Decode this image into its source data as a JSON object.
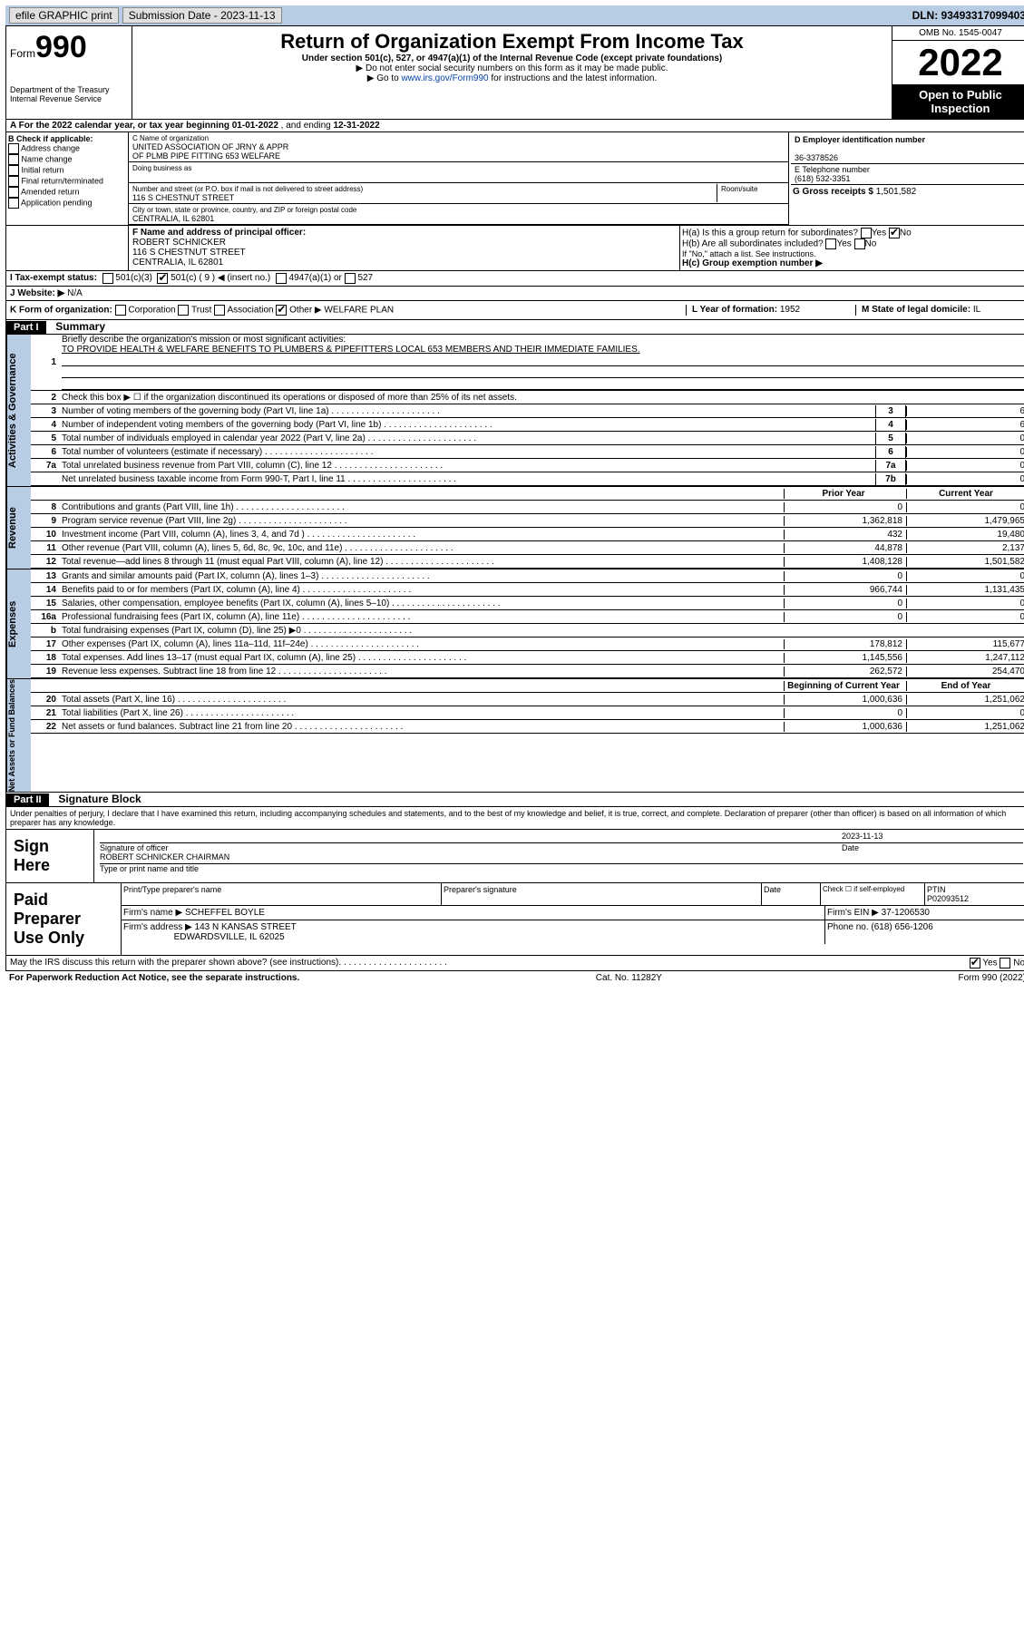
{
  "topbar": {
    "efile": "efile GRAPHIC print",
    "subdate_label": "Submission Date - 2023-11-13",
    "dln": "DLN: 93493317099403"
  },
  "header": {
    "form_word": "Form",
    "form_num": "990",
    "dept": "Department of the Treasury\nInternal Revenue Service",
    "title": "Return of Organization Exempt From Income Tax",
    "under": "Under section 501(c), 527, or 4947(a)(1) of the Internal Revenue Code (except private foundations)",
    "warn": "▶ Do not enter social security numbers on this form as it may be made public.",
    "goto": "▶ Go to ",
    "goto_link": "www.irs.gov/Form990",
    "goto_after": " for instructions and the latest information.",
    "omb": "OMB No. 1545-0047",
    "year": "2022",
    "otp": "Open to Public Inspection"
  },
  "period": {
    "a": "A For the 2022 calendar year, or tax year beginning ",
    "beg": "01-01-2022",
    "mid": " , and ending ",
    "end": "12-31-2022"
  },
  "B": {
    "hdr": "B Check if applicable:",
    "items": [
      "Address change",
      "Name change",
      "Initial return",
      "Final return/terminated",
      "Amended return",
      "Application pending"
    ]
  },
  "C": {
    "namelbl": "C Name of organization",
    "name1": "UNITED ASSOCIATION OF JRNY & APPR",
    "name2": "OF PLMB PIPE FITTING 653 WELFARE",
    "dbalbl": "Doing business as",
    "addrlbl": "Number and street (or P.O. box if mail is not delivered to street address)",
    "room": "Room/suite",
    "addr": "116 S CHESTNUT STREET",
    "citylbl": "City or town, state or province, country, and ZIP or foreign postal code",
    "city": "CENTRALIA, IL 62801"
  },
  "D": {
    "lbl": "D Employer identification number",
    "val": "36-3378526"
  },
  "E": {
    "lbl": "E Telephone number",
    "val": "(618) 532-3351"
  },
  "G": {
    "lbl": "G Gross receipts $",
    "val": "1,501,582"
  },
  "F": {
    "lbl": "F Name and address of principal officer:",
    "name": "ROBERT SCHNICKER",
    "l2": "116 S CHESTNUT STREET",
    "l3": "CENTRALIA, IL 62801"
  },
  "H": {
    "a": "H(a) Is this a group return for subordinates?",
    "b": "H(b) Are all subordinates included?",
    "note": "If \"No,\" attach a list. See instructions.",
    "c": "H(c) Group exemption number ▶",
    "yes": "Yes",
    "no": "No"
  },
  "I": {
    "lbl": "I Tax-exempt status:",
    "o1": "501(c)(3)",
    "o2": "501(c) ( 9 ) ◀ (insert no.)",
    "o3": "4947(a)(1) or",
    "o4": "527"
  },
  "J": {
    "lbl": "J Website: ▶",
    "val": "N/A"
  },
  "K": {
    "lbl": "K Form of organization:",
    "o1": "Corporation",
    "o2": "Trust",
    "o3": "Association",
    "o4": "Other ▶",
    "o4v": "WELFARE PLAN"
  },
  "L": {
    "lbl": "L Year of formation:",
    "val": "1952"
  },
  "M": {
    "lbl": "M State of legal domicile:",
    "val": "IL"
  },
  "PartI": {
    "label": "Part I",
    "title": "Summary",
    "l1a": "Briefly describe the organization's mission or most significant activities:",
    "l1b": "TO PROVIDE HEALTH & WELFARE BENEFITS TO PLUMBERS & PIPEFITTERS LOCAL 653 MEMBERS AND THEIR IMMEDIATE FAMILIES.",
    "l2": "Check this box ▶ ☐ if the organization discontinued its operations or disposed of more than 25% of its net assets.",
    "gov_lines": [
      {
        "n": "3",
        "t": "Number of voting members of the governing body (Part VI, line 1a)",
        "b": "3",
        "v": "6"
      },
      {
        "n": "4",
        "t": "Number of independent voting members of the governing body (Part VI, line 1b)",
        "b": "4",
        "v": "6"
      },
      {
        "n": "5",
        "t": "Total number of individuals employed in calendar year 2022 (Part V, line 2a)",
        "b": "5",
        "v": "0"
      },
      {
        "n": "6",
        "t": "Total number of volunteers (estimate if necessary)",
        "b": "6",
        "v": "0"
      },
      {
        "n": "7a",
        "t": "Total unrelated business revenue from Part VIII, column (C), line 12",
        "b": "7a",
        "v": "0"
      },
      {
        "n": "",
        "t": "Net unrelated business taxable income from Form 990-T, Part I, line 11",
        "b": "7b",
        "v": "0"
      }
    ],
    "colhdr_prior": "Prior Year",
    "colhdr_curr": "Current Year",
    "rev_lines": [
      {
        "n": "8",
        "t": "Contributions and grants (Part VIII, line 1h)",
        "p": "0",
        "c": "0"
      },
      {
        "n": "9",
        "t": "Program service revenue (Part VIII, line 2g)",
        "p": "1,362,818",
        "c": "1,479,965"
      },
      {
        "n": "10",
        "t": "Investment income (Part VIII, column (A), lines 3, 4, and 7d )",
        "p": "432",
        "c": "19,480"
      },
      {
        "n": "11",
        "t": "Other revenue (Part VIII, column (A), lines 5, 6d, 8c, 9c, 10c, and 11e)",
        "p": "44,878",
        "c": "2,137"
      },
      {
        "n": "12",
        "t": "Total revenue—add lines 8 through 11 (must equal Part VIII, column (A), line 12)",
        "p": "1,408,128",
        "c": "1,501,582"
      }
    ],
    "exp_lines": [
      {
        "n": "13",
        "t": "Grants and similar amounts paid (Part IX, column (A), lines 1–3)",
        "p": "0",
        "c": "0"
      },
      {
        "n": "14",
        "t": "Benefits paid to or for members (Part IX, column (A), line 4)",
        "p": "966,744",
        "c": "1,131,435"
      },
      {
        "n": "15",
        "t": "Salaries, other compensation, employee benefits (Part IX, column (A), lines 5–10)",
        "p": "0",
        "c": "0"
      },
      {
        "n": "16a",
        "t": "Professional fundraising fees (Part IX, column (A), line 11e)",
        "p": "0",
        "c": "0"
      },
      {
        "n": "b",
        "t": "Total fundraising expenses (Part IX, column (D), line 25) ▶0",
        "p": "",
        "c": ""
      },
      {
        "n": "17",
        "t": "Other expenses (Part IX, column (A), lines 11a–11d, 11f–24e)",
        "p": "178,812",
        "c": "115,677"
      },
      {
        "n": "18",
        "t": "Total expenses. Add lines 13–17 (must equal Part IX, column (A), line 25)",
        "p": "1,145,556",
        "c": "1,247,112"
      },
      {
        "n": "19",
        "t": "Revenue less expenses. Subtract line 18 from line 12",
        "p": "262,572",
        "c": "254,470"
      }
    ],
    "na_hdr_beg": "Beginning of Current Year",
    "na_hdr_end": "End of Year",
    "na_lines": [
      {
        "n": "20",
        "t": "Total assets (Part X, line 16)",
        "p": "1,000,636",
        "c": "1,251,062"
      },
      {
        "n": "21",
        "t": "Total liabilities (Part X, line 26)",
        "p": "0",
        "c": "0"
      },
      {
        "n": "22",
        "t": "Net assets or fund balances. Subtract line 21 from line 20",
        "p": "1,000,636",
        "c": "1,251,062"
      }
    ]
  },
  "PartII": {
    "label": "Part II",
    "title": "Signature Block",
    "jurat": "Under penalties of perjury, I declare that I have examined this return, including accompanying schedules and statements, and to the best of my knowledge and belief, it is true, correct, and complete. Declaration of preparer (other than officer) is based on all information of which preparer has any knowledge.",
    "sign": "Sign Here",
    "sigoff": "Signature of officer",
    "date": "Date",
    "sigdate": "2023-11-13",
    "name": "ROBERT SCHNICKER  CHAIRMAN",
    "nametag": "Type or print name and title",
    "paid": "Paid Preparer Use Only",
    "prep_cols": [
      "Print/Type preparer's name",
      "Preparer's signature",
      "Date"
    ],
    "chk": "Check ☐ if self-employed",
    "ptin_lbl": "PTIN",
    "ptin": "P02093512",
    "firm_lbl": "Firm's name ▶",
    "firm": "SCHEFFEL BOYLE",
    "fein_lbl": "Firm's EIN ▶",
    "fein": "37-1206530",
    "faddr_lbl": "Firm's address ▶",
    "faddr1": "143 N KANSAS STREET",
    "faddr2": "EDWARDSVILLE, IL 62025",
    "fphone_lbl": "Phone no.",
    "fphone": "(618) 656-1206",
    "may": "May the IRS discuss this return with the preparer shown above? (see instructions)"
  },
  "footer": {
    "pra": "For Paperwork Reduction Act Notice, see the separate instructions.",
    "cat": "Cat. No. 11282Y",
    "form": "Form 990 (2022)"
  },
  "vtabs": {
    "gov": "Activities & Governance",
    "rev": "Revenue",
    "exp": "Expenses",
    "na": "Net Assets or Fund Balances"
  }
}
